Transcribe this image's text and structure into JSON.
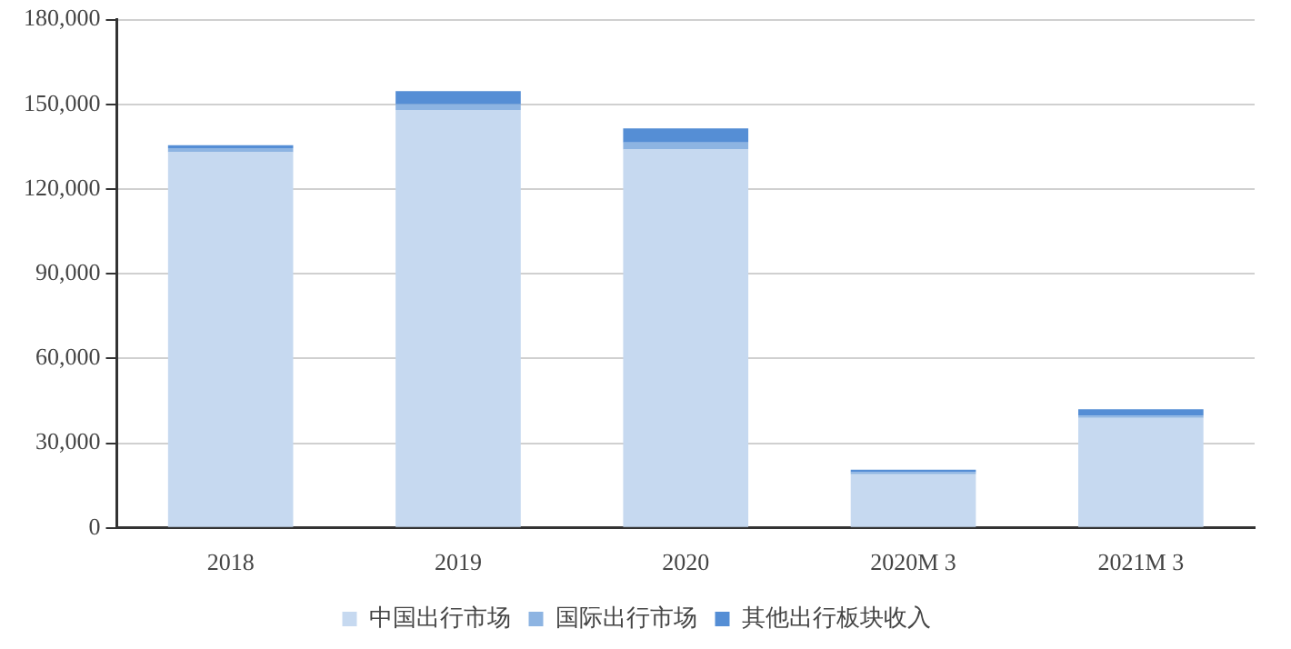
{
  "chart_data": {
    "type": "bar",
    "stacked": true,
    "categories": [
      "2018",
      "2019",
      "2020",
      "2020M 3",
      "2021M 3"
    ],
    "series": [
      {
        "name": "中国出行市场",
        "color": "#c6d9f0",
        "values": [
          133000,
          148000,
          134000,
          19000,
          39000
        ]
      },
      {
        "name": "国际出行市场",
        "color": "#8db4e2",
        "values": [
          1500,
          2000,
          2500,
          700,
          800
        ]
      },
      {
        "name": "其他出行板块收入",
        "color": "#558ed5",
        "values": [
          1000,
          4700,
          5000,
          900,
          2200
        ]
      }
    ],
    "ylim": [
      0,
      180000
    ],
    "yticks": [
      {
        "value": 0,
        "label": "0"
      },
      {
        "value": 30000,
        "label": "30,000"
      },
      {
        "value": 60000,
        "label": "60,000"
      },
      {
        "value": 90000,
        "label": "90,000"
      },
      {
        "value": 120000,
        "label": "120,000"
      },
      {
        "value": 150000,
        "label": "150,000"
      },
      {
        "value": 180000,
        "label": "180,000"
      }
    ],
    "grid": "y",
    "legend": "bottom"
  }
}
